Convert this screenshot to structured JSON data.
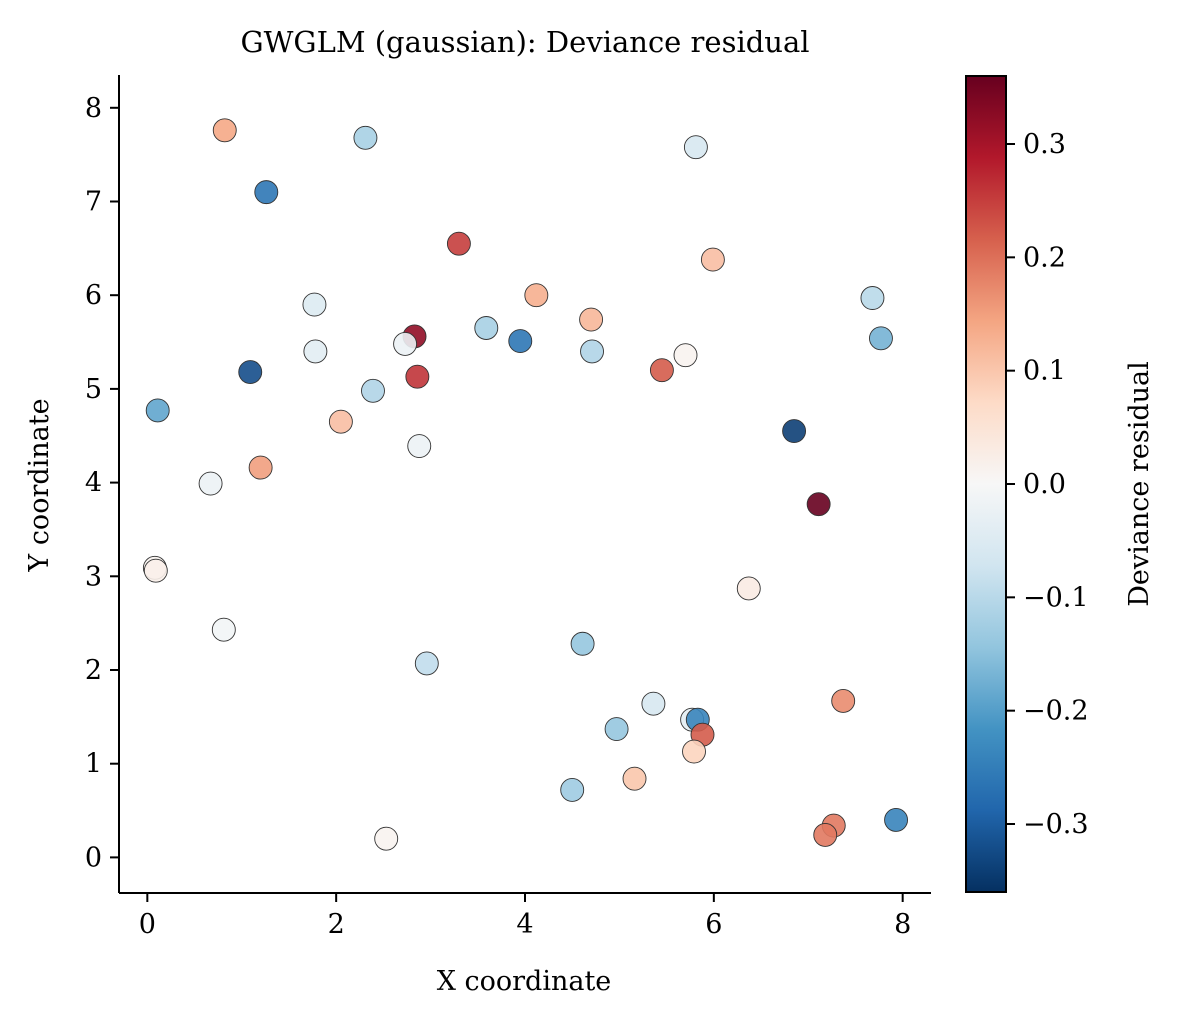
{
  "chart_data": {
    "type": "scatter",
    "title": "GWGLM (gaussian): Deviance residual",
    "xlabel": "X coordinate",
    "ylabel": "Y coordinate",
    "xlim": [
      -0.3,
      8.3
    ],
    "ylim": [
      -0.38,
      8.35
    ],
    "xticks": [
      0,
      2,
      4,
      6,
      8
    ],
    "yticks": [
      0,
      1,
      2,
      3,
      4,
      5,
      6,
      7,
      8
    ],
    "grid": false,
    "colorbar": {
      "label": "Deviance residual",
      "colormap": "RdBu_r",
      "range": [
        -0.36,
        0.36
      ],
      "ticks": [
        -0.3,
        -0.2,
        -0.1,
        0.0,
        0.1,
        0.2,
        0.3
      ],
      "tick_labels": [
        "−0.3",
        "−0.2",
        "−0.1",
        "0.0",
        "0.1",
        "0.2",
        "0.3"
      ]
    },
    "points": [
      {
        "x": 0.82,
        "y": 7.76,
        "value": 0.14
      },
      {
        "x": 2.31,
        "y": 7.68,
        "value": -0.12
      },
      {
        "x": 1.26,
        "y": 7.1,
        "value": -0.26
      },
      {
        "x": 5.81,
        "y": 7.58,
        "value": -0.06
      },
      {
        "x": 3.3,
        "y": 6.55,
        "value": 0.25
      },
      {
        "x": 5.99,
        "y": 6.38,
        "value": 0.11
      },
      {
        "x": 1.77,
        "y": 5.9,
        "value": -0.05
      },
      {
        "x": 4.12,
        "y": 6.0,
        "value": 0.13
      },
      {
        "x": 4.7,
        "y": 5.74,
        "value": 0.12
      },
      {
        "x": 7.68,
        "y": 5.97,
        "value": -0.1
      },
      {
        "x": 3.59,
        "y": 5.65,
        "value": -0.12
      },
      {
        "x": 3.95,
        "y": 5.51,
        "value": -0.26
      },
      {
        "x": 2.83,
        "y": 5.56,
        "value": 0.32
      },
      {
        "x": 2.73,
        "y": 5.48,
        "value": -0.02
      },
      {
        "x": 1.78,
        "y": 5.4,
        "value": -0.04
      },
      {
        "x": 4.71,
        "y": 5.4,
        "value": -0.11
      },
      {
        "x": 5.7,
        "y": 5.36,
        "value": 0.01
      },
      {
        "x": 7.77,
        "y": 5.54,
        "value": -0.17
      },
      {
        "x": 1.09,
        "y": 5.18,
        "value": -0.32
      },
      {
        "x": 2.86,
        "y": 5.13,
        "value": 0.26
      },
      {
        "x": 5.45,
        "y": 5.2,
        "value": 0.22
      },
      {
        "x": 0.11,
        "y": 4.77,
        "value": -0.19
      },
      {
        "x": 2.39,
        "y": 4.98,
        "value": -0.11
      },
      {
        "x": 2.05,
        "y": 4.65,
        "value": 0.11
      },
      {
        "x": 6.85,
        "y": 4.55,
        "value": -0.34
      },
      {
        "x": 2.88,
        "y": 4.39,
        "value": -0.02
      },
      {
        "x": 1.2,
        "y": 4.16,
        "value": 0.15
      },
      {
        "x": 0.67,
        "y": 3.99,
        "value": -0.02
      },
      {
        "x": 7.11,
        "y": 3.77,
        "value": 0.36
      },
      {
        "x": 0.08,
        "y": 3.09,
        "value": 0.01
      },
      {
        "x": 0.09,
        "y": 3.06,
        "value": 0.02
      },
      {
        "x": 6.37,
        "y": 2.87,
        "value": 0.03
      },
      {
        "x": 0.81,
        "y": 2.43,
        "value": -0.01
      },
      {
        "x": 4.61,
        "y": 2.28,
        "value": -0.14
      },
      {
        "x": 2.96,
        "y": 2.07,
        "value": -0.09
      },
      {
        "x": 7.37,
        "y": 1.67,
        "value": 0.17
      },
      {
        "x": 5.36,
        "y": 1.64,
        "value": -0.06
      },
      {
        "x": 5.77,
        "y": 1.47,
        "value": -0.04
      },
      {
        "x": 5.83,
        "y": 1.47,
        "value": -0.24
      },
      {
        "x": 4.97,
        "y": 1.37,
        "value": -0.14
      },
      {
        "x": 5.88,
        "y": 1.31,
        "value": 0.22
      },
      {
        "x": 5.79,
        "y": 1.13,
        "value": 0.08
      },
      {
        "x": 5.16,
        "y": 0.84,
        "value": 0.1
      },
      {
        "x": 4.5,
        "y": 0.72,
        "value": -0.13
      },
      {
        "x": 7.93,
        "y": 0.4,
        "value": -0.24
      },
      {
        "x": 7.27,
        "y": 0.34,
        "value": 0.19
      },
      {
        "x": 7.18,
        "y": 0.24,
        "value": 0.19
      },
      {
        "x": 2.53,
        "y": 0.2,
        "value": 0.01
      }
    ]
  }
}
